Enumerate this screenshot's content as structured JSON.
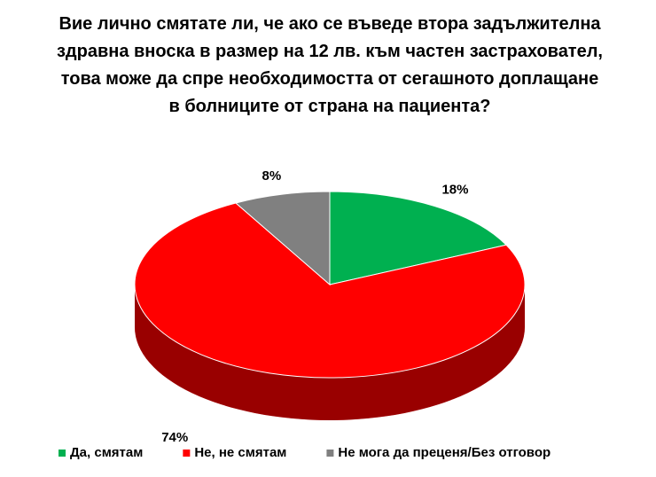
{
  "chart_data": {
    "type": "pie3d",
    "title": "Вие лично смятате ли, че ако се въведе втора задължителна здравна вноска в размер на 12 лв. към частен застраховател, това може да спре необходимостта от сегашното доплащане в болниците от страна на пациента?",
    "categories": [
      "Да, смятам",
      "Не, не смятам",
      "Не мога да преценя/Без отговор"
    ],
    "values": [
      18,
      74,
      8
    ],
    "value_labels": [
      "18%",
      "74%",
      "8%"
    ],
    "colors": [
      "#00b050",
      "#ff0000",
      "#808080"
    ],
    "legend": "bottom"
  }
}
